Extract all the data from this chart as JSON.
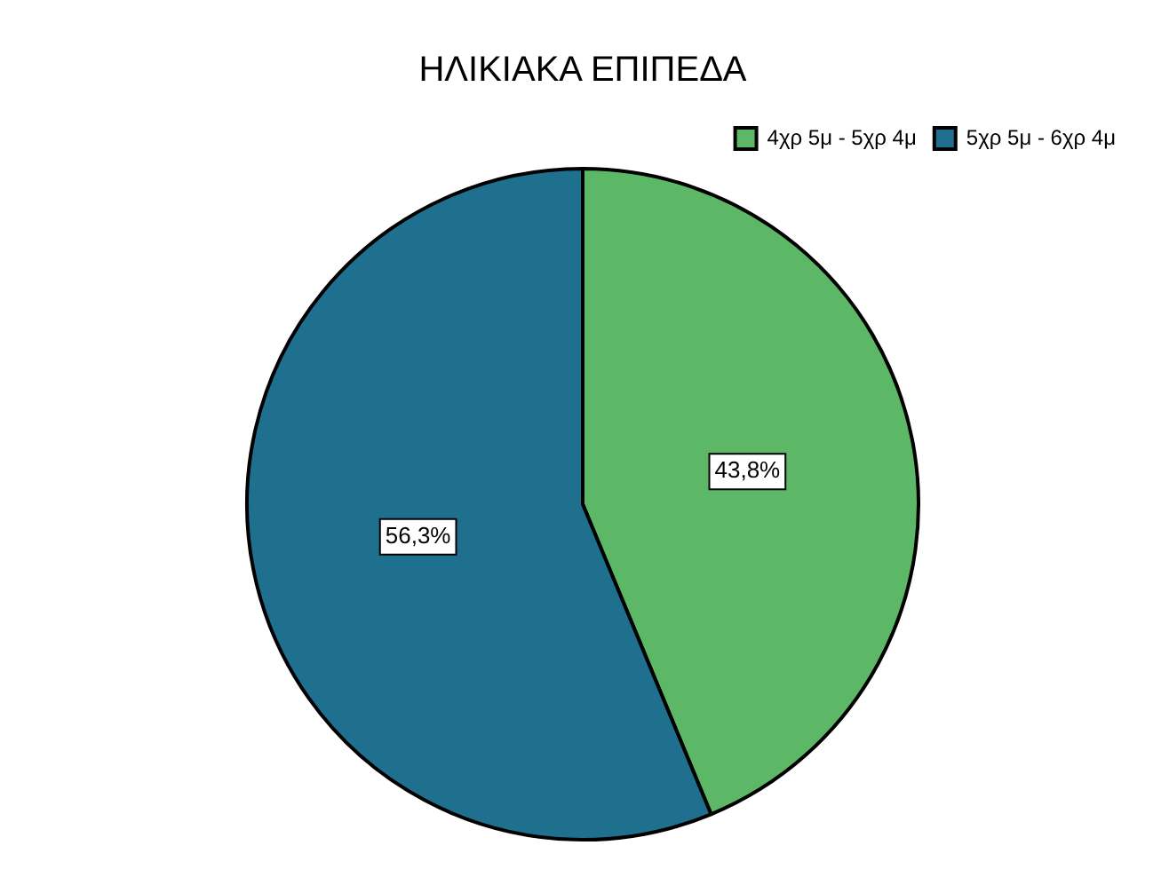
{
  "chart_data": {
    "type": "pie",
    "title": "ΗΛΙΚΙΑΚΑ ΕΠΙΠΕΔΑ",
    "categories": [
      "4χρ 5μ - 5χρ 4μ",
      "5χρ 5μ - 6χρ 4μ"
    ],
    "values": [
      43.8,
      56.3
    ],
    "colors": [
      "#5cb866",
      "#1f6f8e"
    ],
    "value_labels": [
      "43,8%",
      "56,3%"
    ],
    "legend": "top right"
  }
}
